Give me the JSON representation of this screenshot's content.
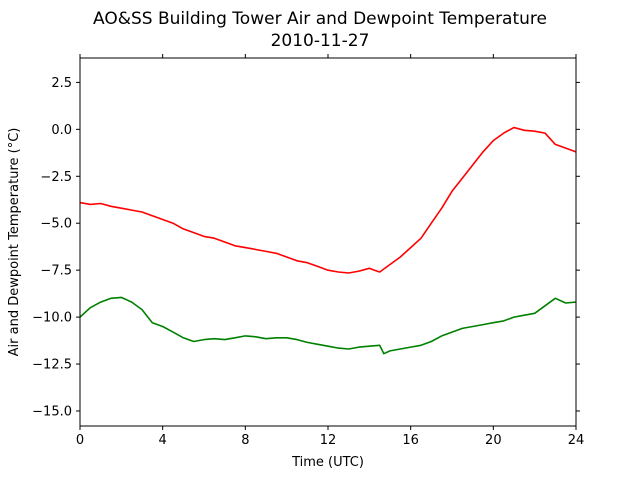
{
  "chart_data": {
    "type": "line",
    "title": "AO&SS Building Tower Air and Dewpoint Temperature",
    "subtitle": "2010-11-27",
    "xlabel": "Time (UTC)",
    "ylabel": "Air and Dewpoint Temperature (°C)",
    "xlim": [
      0,
      24
    ],
    "ylim": [
      -15.8,
      3.8
    ],
    "xticks": [
      0,
      4,
      8,
      12,
      16,
      20,
      24
    ],
    "xtick_labels": [
      "0",
      "4",
      "8",
      "12",
      "16",
      "20",
      "24"
    ],
    "yticks": [
      2.5,
      0.0,
      -2.5,
      -5.0,
      -7.5,
      -10.0,
      -12.5,
      -15.0
    ],
    "ytick_labels": [
      "2.5",
      "0.0",
      "−2.5",
      "−5.0",
      "−7.5",
      "−10.0",
      "−12.5",
      "−15.0"
    ],
    "grid": false,
    "series": [
      {
        "color": "#ff0000",
        "x": [
          0,
          0.5,
          1,
          1.5,
          2,
          2.5,
          3,
          3.5,
          4,
          4.5,
          5,
          5.5,
          6,
          6.5,
          7,
          7.5,
          8,
          8.5,
          9,
          9.5,
          10,
          10.5,
          11,
          11.5,
          12,
          12.5,
          13,
          13.5,
          14,
          14.25,
          14.5,
          15,
          15.5,
          16,
          16.5,
          17,
          17.5,
          18,
          18.5,
          19,
          19.5,
          20,
          20.5,
          21,
          21.5,
          22,
          22.5,
          23,
          23.5,
          24
        ],
        "y": [
          -3.9,
          -4.0,
          -3.95,
          -4.1,
          -4.2,
          -4.3,
          -4.4,
          -4.6,
          -4.8,
          -5.0,
          -5.3,
          -5.5,
          -5.7,
          -5.8,
          -6.0,
          -6.2,
          -6.3,
          -6.4,
          -6.5,
          -6.6,
          -6.8,
          -7.0,
          -7.1,
          -7.3,
          -7.5,
          -7.6,
          -7.65,
          -7.55,
          -7.4,
          -7.5,
          -7.6,
          -7.2,
          -6.8,
          -6.3,
          -5.8,
          -5.0,
          -4.2,
          -3.3,
          -2.6,
          -1.9,
          -1.2,
          -0.6,
          -0.2,
          0.1,
          -0.05,
          -0.1,
          -0.2,
          -0.8,
          -1.0,
          -1.2
        ]
      },
      {
        "color": "#008000",
        "x": [
          0,
          0.5,
          1,
          1.5,
          2,
          2.5,
          3,
          3.5,
          4,
          4.5,
          5,
          5.5,
          6,
          6.5,
          7,
          7.5,
          8,
          8.5,
          9,
          9.5,
          10,
          10.5,
          11,
          11.5,
          12,
          12.5,
          13,
          13.5,
          14,
          14.5,
          14.7,
          15,
          15.5,
          16,
          16.5,
          17,
          17.5,
          18,
          18.5,
          19,
          19.5,
          20,
          20.5,
          21,
          21.5,
          22,
          22.5,
          23,
          23.5,
          24
        ],
        "y": [
          -10.0,
          -9.5,
          -9.2,
          -9.0,
          -8.95,
          -9.2,
          -9.6,
          -10.3,
          -10.5,
          -10.8,
          -11.1,
          -11.3,
          -11.2,
          -11.15,
          -11.2,
          -11.1,
          -11.0,
          -11.05,
          -11.15,
          -11.1,
          -11.1,
          -11.2,
          -11.35,
          -11.45,
          -11.55,
          -11.65,
          -11.7,
          -11.6,
          -11.55,
          -11.5,
          -11.95,
          -11.8,
          -11.7,
          -11.6,
          -11.5,
          -11.3,
          -11.0,
          -10.8,
          -10.6,
          -10.5,
          -10.4,
          -10.3,
          -10.2,
          -10.0,
          -9.9,
          -9.8,
          -9.4,
          -9.0,
          -9.25,
          -9.2
        ]
      }
    ]
  }
}
